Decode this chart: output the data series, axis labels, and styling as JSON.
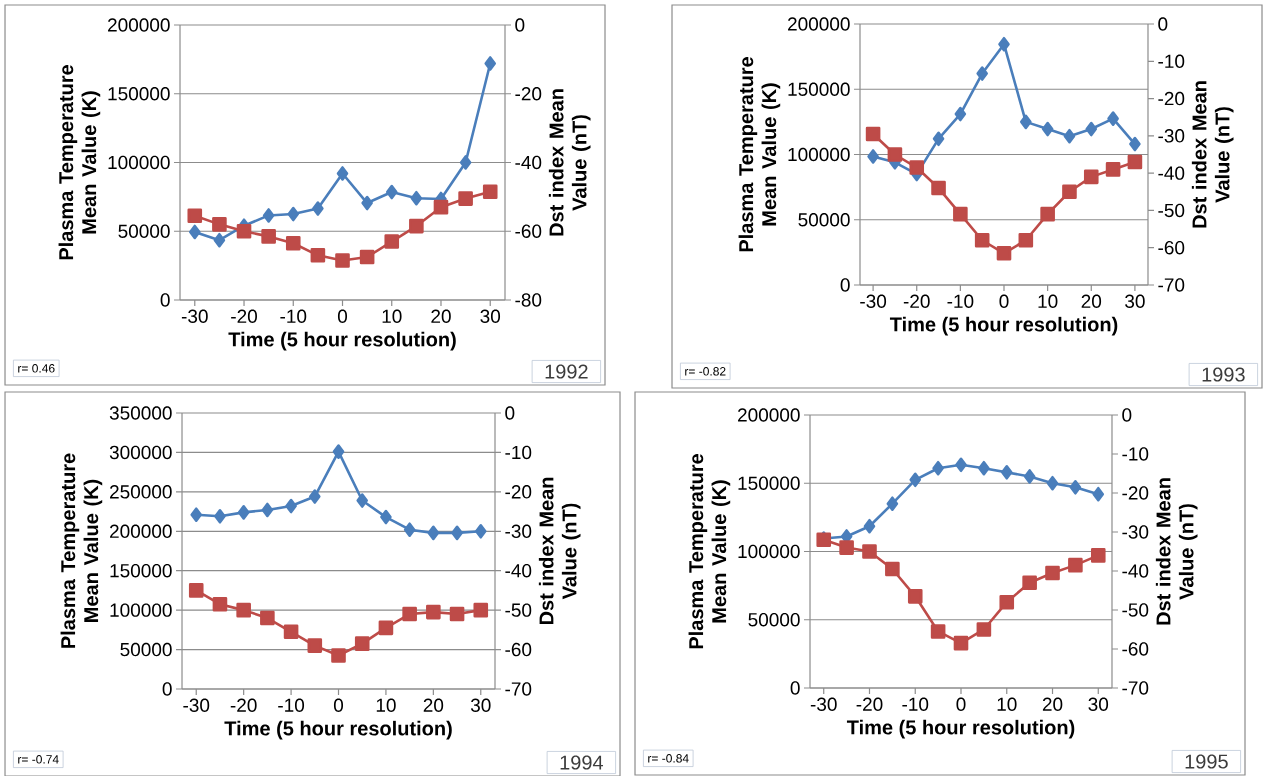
{
  "chart_data": [
    {
      "type": "line",
      "x": [
        -30,
        -25,
        -20,
        -15,
        -10,
        -5,
        0,
        5,
        10,
        15,
        20,
        25,
        30
      ],
      "xlim": [
        -33,
        33
      ],
      "xticks": [
        -30,
        -20,
        -10,
        0,
        10,
        20,
        30
      ],
      "ylim": [
        0,
        200000
      ],
      "yticks": [
        0,
        50000,
        100000,
        150000,
        200000
      ],
      "y2lim": [
        -80,
        0
      ],
      "y2ticks": [
        -80,
        -60,
        -40,
        -20,
        0
      ],
      "xlabel": "Time (5 hour resolution)",
      "ylabel": "Plasma Temperature Mean Value (K)",
      "y2label": "Dst index Mean Value (nT)",
      "grid": "y",
      "line_style": "solid",
      "annotations": [
        "r= 0.46",
        "1992"
      ],
      "series": [
        {
          "color": "#4a7ebb",
          "marker": "diamond",
          "values": [
            49500,
            43500,
            54000,
            61500,
            62500,
            66500,
            92000,
            70500,
            78500,
            74000,
            73500,
            100000,
            172000
          ]
        },
        {
          "color": "#be4b48",
          "marker": "square",
          "axis": "y2",
          "values": [
            -55.5,
            -58,
            -60,
            -61.5,
            -63.5,
            -67,
            -68.5,
            -67.5,
            -63,
            -58.5,
            -53,
            -50.5,
            -48.5
          ]
        }
      ]
    },
    {
      "type": "line",
      "x": [
        -30,
        -25,
        -20,
        -15,
        -10,
        -5,
        0,
        5,
        10,
        15,
        20,
        25,
        30
      ],
      "xlim": [
        -33,
        33
      ],
      "xticks": [
        -30,
        -20,
        -10,
        0,
        10,
        20,
        30
      ],
      "ylim": [
        0,
        200000
      ],
      "yticks": [
        0,
        50000,
        100000,
        150000,
        200000
      ],
      "y2lim": [
        -70,
        0
      ],
      "y2ticks": [
        -70,
        -60,
        -50,
        -40,
        -30,
        -20,
        -10,
        0
      ],
      "xlabel": "Time (5 hour resolution)",
      "ylabel": "Plasma Temperature Mean Value (K)",
      "y2label": "Dst index Mean Value (nT)",
      "grid": "y",
      "line_style": "solid",
      "annotations": [
        "r= -0.82",
        "1993"
      ],
      "series": [
        {
          "color": "#4a7ebb",
          "marker": "diamond",
          "values": [
            98500,
            94000,
            85000,
            112000,
            131000,
            162000,
            184500,
            125000,
            119500,
            114000,
            119500,
            127500,
            108000
          ]
        },
        {
          "color": "#be4b48",
          "marker": "square",
          "axis": "y2",
          "values": [
            -29.5,
            -35,
            -38.5,
            -44,
            -51,
            -58,
            -61.5,
            -58,
            -51,
            -45,
            -41,
            -39,
            -37
          ]
        }
      ]
    },
    {
      "type": "line",
      "x": [
        -30,
        -25,
        -20,
        -15,
        -10,
        -5,
        0,
        5,
        10,
        15,
        20,
        25,
        30
      ],
      "xlim": [
        -33,
        33
      ],
      "xticks": [
        -30,
        -20,
        -10,
        0,
        10,
        20,
        30
      ],
      "ylim": [
        0,
        350000
      ],
      "yticks": [
        0,
        50000,
        100000,
        150000,
        200000,
        250000,
        300000,
        350000
      ],
      "y2lim": [
        -70,
        0
      ],
      "y2ticks": [
        -70,
        -60,
        -50,
        -40,
        -30,
        -20,
        -10,
        0
      ],
      "xlabel": "Time (5 hour resolution)",
      "ylabel": "Plasma Temperature Mean Value (K)",
      "y2label": "Dst index Mean Value (nT)",
      "grid": "y",
      "line_style": "solid",
      "annotations": [
        "r= -0.74",
        "1994"
      ],
      "series": [
        {
          "color": "#4a7ebb",
          "marker": "diamond",
          "values": [
            221000,
            219000,
            224000,
            227000,
            232000,
            244000,
            301000,
            239000,
            218000,
            202000,
            198000,
            198000,
            200000
          ]
        },
        {
          "color": "#be4b48",
          "marker": "square",
          "axis": "y2",
          "values": [
            -45,
            -48.5,
            -50,
            -52,
            -55.5,
            -59,
            -61.5,
            -58.5,
            -54.5,
            -51,
            -50.5,
            -51,
            -50
          ]
        }
      ]
    },
    {
      "type": "line",
      "x": [
        -30,
        -25,
        -20,
        -15,
        -10,
        -5,
        0,
        5,
        10,
        15,
        20,
        25,
        30
      ],
      "xlim": [
        -33,
        33
      ],
      "xticks": [
        -30,
        -20,
        -10,
        0,
        10,
        20,
        30
      ],
      "ylim": [
        0,
        200000
      ],
      "yticks": [
        0,
        50000,
        100000,
        150000,
        200000
      ],
      "y2lim": [
        -70,
        0
      ],
      "y2ticks": [
        -70,
        -60,
        -50,
        -40,
        -30,
        -20,
        -10,
        0
      ],
      "xlabel": "Time (5 hour resolution)",
      "ylabel": "Plasma Temperature Mean Value (K)",
      "y2label": "Dst index Mean Value (nT)",
      "grid": "y",
      "line_style": "solid",
      "annotations": [
        "r= -0.84",
        "1995"
      ],
      "series": [
        {
          "color": "#4a7ebb",
          "marker": "diamond",
          "values": [
            109500,
            111000,
            118500,
            135000,
            152500,
            161000,
            163500,
            161000,
            158000,
            155000,
            150000,
            147000,
            142000
          ]
        },
        {
          "color": "#be4b48",
          "marker": "square",
          "axis": "y2",
          "values": [
            -32,
            -34,
            -35,
            -39.5,
            -46.5,
            -55.5,
            -58.5,
            -55,
            -48,
            -43,
            -40.5,
            -38.5,
            -36
          ]
        }
      ]
    }
  ]
}
